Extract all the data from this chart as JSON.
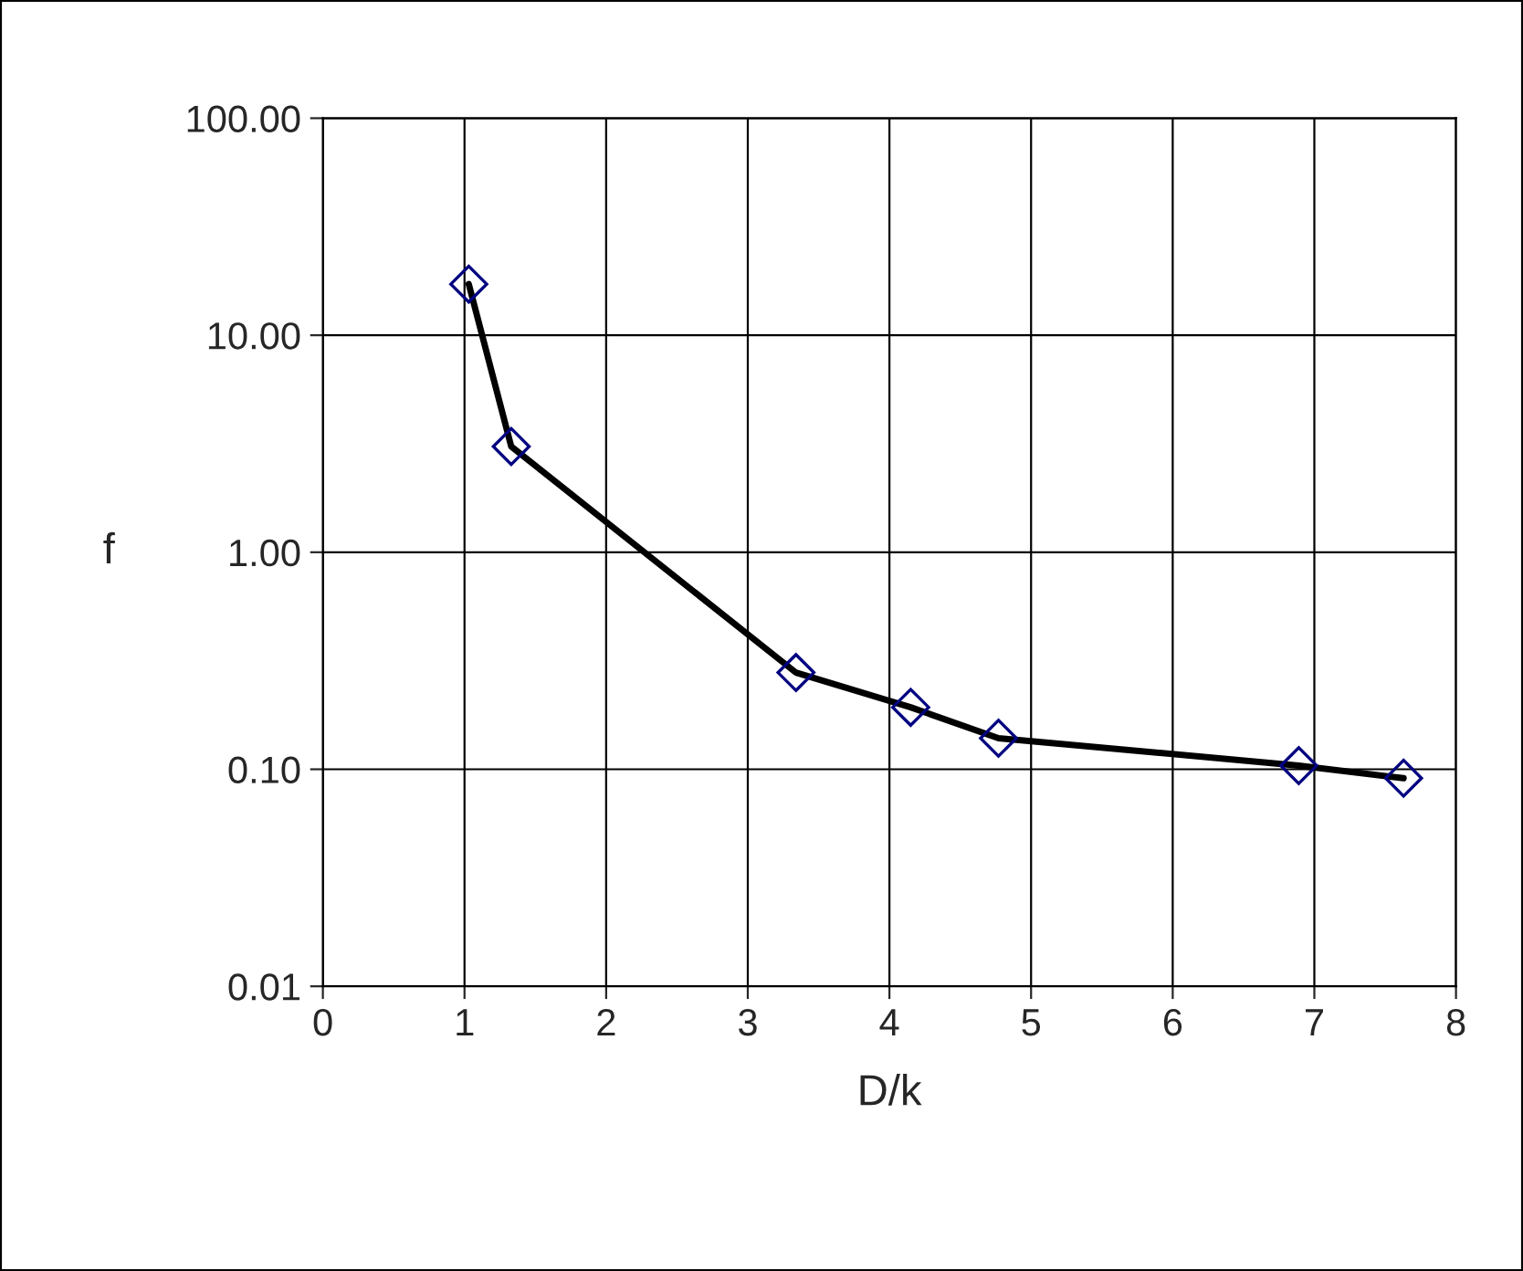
{
  "chart_data": {
    "type": "line",
    "xlabel": "D/k",
    "ylabel": "f",
    "series": [
      {
        "color": "#000000",
        "x": [
          1.03,
          1.33,
          3.34,
          4.15,
          4.77,
          6.89,
          7.63
        ],
        "values": [
          17.2,
          3.07,
          0.279,
          0.193,
          0.139,
          0.104,
          0.091
        ]
      }
    ],
    "marker": "diamond",
    "line_style": "solid",
    "log": "y",
    "grid": true,
    "xlim": [
      0,
      8
    ],
    "xticks": [
      0,
      1,
      2,
      3,
      4,
      5,
      6,
      7,
      8
    ],
    "ylim": [
      0.01,
      100
    ],
    "yticks": [
      {
        "value": 0.01,
        "label": "0.01"
      },
      {
        "value": 0.1,
        "label": "0.10"
      },
      {
        "value": 1,
        "label": "1.00"
      },
      {
        "value": 10,
        "label": "10.00"
      },
      {
        "value": 100,
        "label": "100.00"
      }
    ]
  }
}
